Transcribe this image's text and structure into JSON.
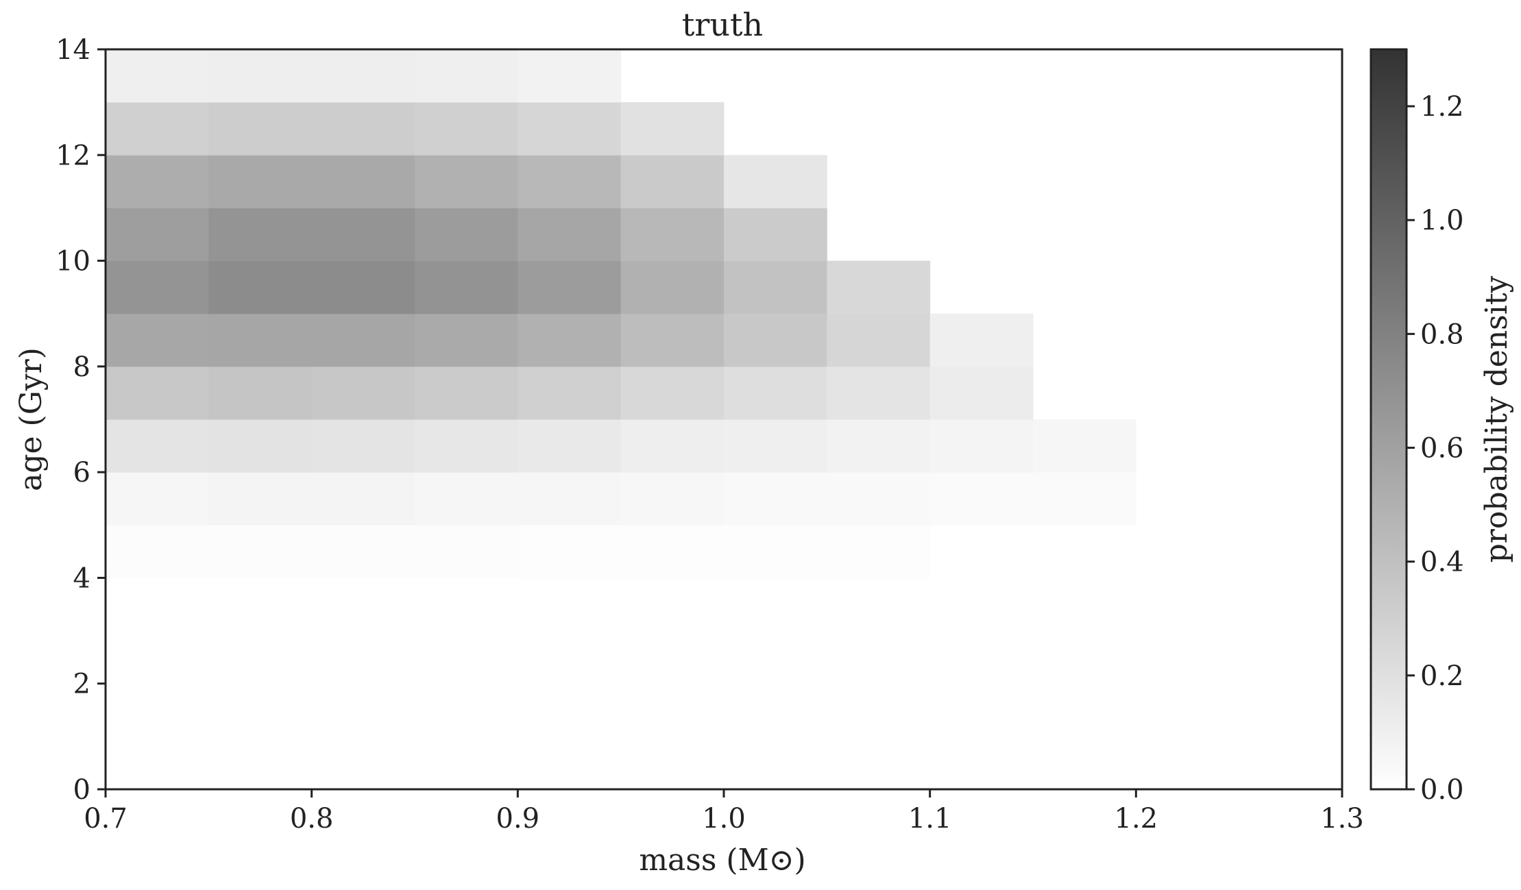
{
  "chart_data": {
    "type": "heatmap",
    "title": "truth",
    "xlabel": "mass (M⊙)",
    "ylabel": "age (Gyr)",
    "colorbar_label": "probability density",
    "xlim": [
      0.7,
      1.3
    ],
    "ylim": [
      0,
      14
    ],
    "clim": [
      0.0,
      1.3
    ],
    "colormap": "Greys",
    "x_ticks": [
      "0.7",
      "0.8",
      "0.9",
      "1.0",
      "1.1",
      "1.2",
      "1.3"
    ],
    "y_ticks": [
      "0",
      "2",
      "4",
      "6",
      "8",
      "10",
      "12",
      "14"
    ],
    "colorbar_ticks": [
      "0.0",
      "0.2",
      "0.4",
      "0.6",
      "0.8",
      "1.0",
      "1.2"
    ],
    "mass_bin_edges": [
      0.7,
      0.75,
      0.8,
      0.85,
      0.9,
      0.95,
      1.0,
      1.05,
      1.1,
      1.15,
      1.2
    ],
    "age_bin_edges": [
      4,
      5,
      6,
      7,
      8,
      9,
      10,
      11,
      12,
      13,
      14
    ],
    "values_by_age_row": [
      [
        0.02,
        0.02,
        0.02,
        0.02,
        0.01,
        0.01,
        0.01,
        0.01,
        0.0,
        0.0
      ],
      [
        0.06,
        0.07,
        0.07,
        0.06,
        0.06,
        0.05,
        0.04,
        0.04,
        0.03,
        0.03
      ],
      [
        0.17,
        0.18,
        0.17,
        0.15,
        0.14,
        0.11,
        0.1,
        0.08,
        0.07,
        0.06
      ],
      [
        0.35,
        0.37,
        0.36,
        0.33,
        0.3,
        0.25,
        0.21,
        0.17,
        0.12,
        0.0
      ],
      [
        0.56,
        0.57,
        0.57,
        0.54,
        0.5,
        0.42,
        0.35,
        0.26,
        0.1,
        0.0
      ],
      [
        0.68,
        0.73,
        0.73,
        0.69,
        0.63,
        0.5,
        0.39,
        0.25,
        0.0,
        0.0
      ],
      [
        0.62,
        0.68,
        0.68,
        0.63,
        0.57,
        0.45,
        0.33,
        0.0,
        0.0,
        0.0
      ],
      [
        0.52,
        0.55,
        0.55,
        0.5,
        0.45,
        0.34,
        0.16,
        0.0,
        0.0,
        0.0
      ],
      [
        0.3,
        0.32,
        0.32,
        0.3,
        0.26,
        0.19,
        0.0,
        0.0,
        0.0,
        0.0
      ],
      [
        0.1,
        0.11,
        0.11,
        0.1,
        0.08,
        0.0,
        0.0,
        0.0,
        0.0,
        0.0
      ]
    ]
  }
}
